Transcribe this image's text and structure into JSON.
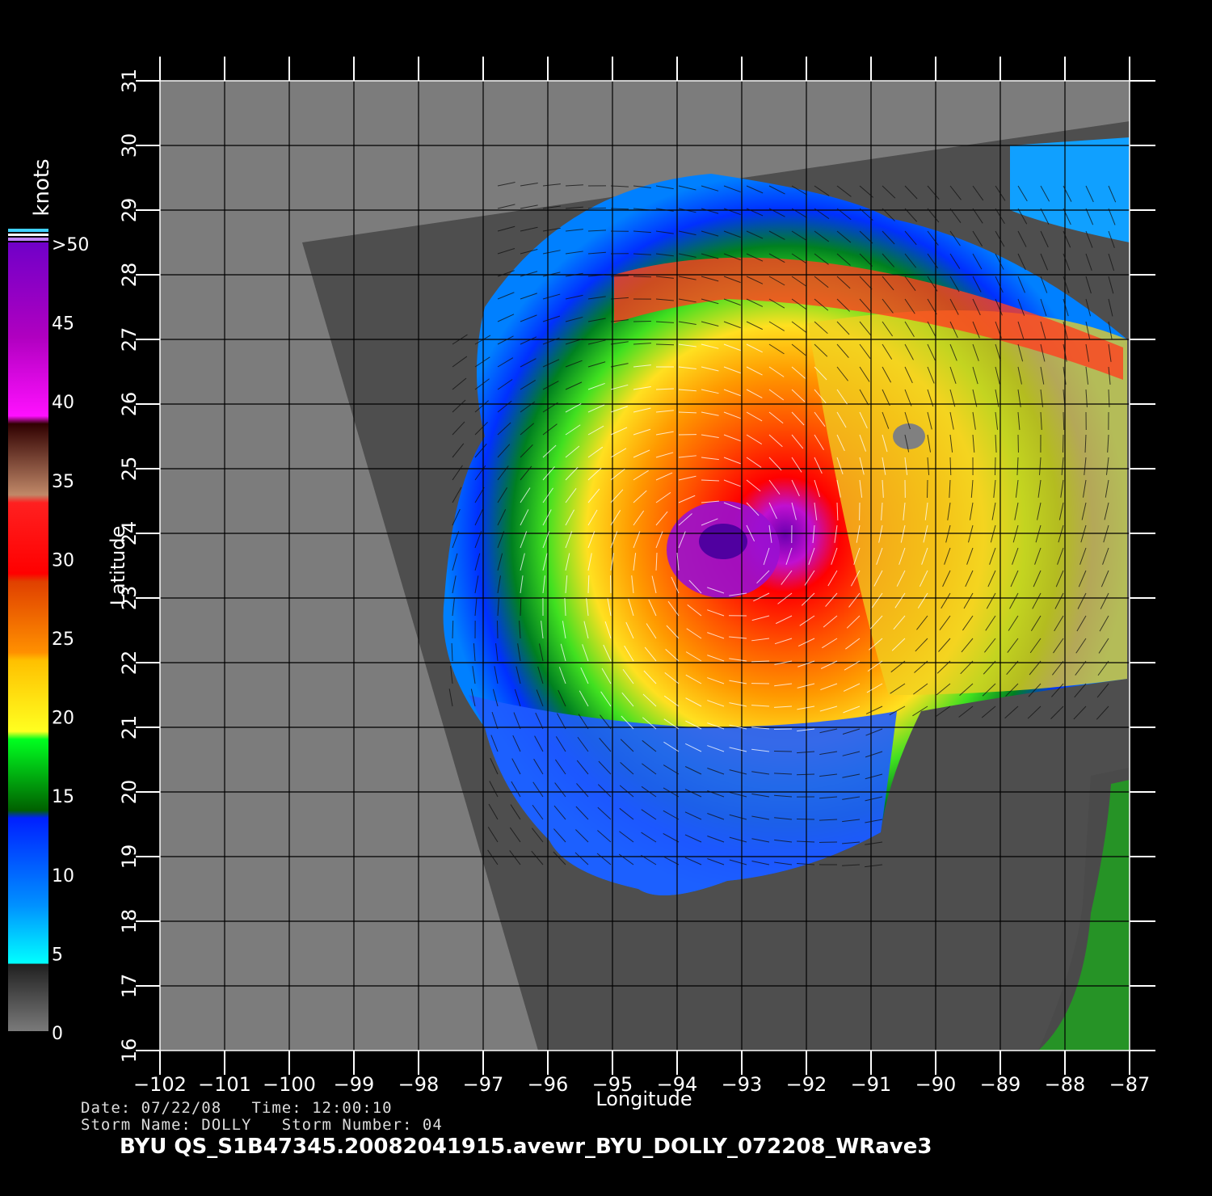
{
  "map": {
    "ylabel": "Latitude",
    "xlabel": "Longitude",
    "lat_ticks": [
      "31",
      "30",
      "29",
      "28",
      "27",
      "26",
      "25",
      "24",
      "23",
      "22",
      "21",
      "20",
      "19",
      "18",
      "17",
      "16"
    ],
    "lon_ticks": [
      "−102",
      "−101",
      "−100",
      "−99",
      "−98",
      "−97",
      "−96",
      "−95",
      "−94",
      "−93",
      "−92",
      "−91",
      "−90",
      "−89",
      "−88",
      "−87"
    ],
    "lat_range": [
      16,
      31
    ],
    "lon_range": [
      -102,
      -87
    ],
    "storm_center": {
      "lon": -93.2,
      "lat": 23.8
    },
    "grid": true
  },
  "colorbar": {
    "unit": "knots",
    "labels": [
      ">50",
      "45",
      "40",
      "35",
      "30",
      "25",
      "20",
      "15",
      "10",
      "5",
      "0"
    ],
    "stops": [
      "#808080",
      "#404040",
      "#00ffff",
      "#0080ff",
      "#0000ff",
      "#008000",
      "#00ff00",
      "#ffff00",
      "#ff8000",
      "#ff2000",
      "#c08060",
      "#400000",
      "#ff00ff",
      "#8000c0"
    ]
  },
  "meta": {
    "line1": "Date: 07/22/08   Time: 12:00:10",
    "line2": "Storm Name: DOLLY   Storm Number: 04"
  },
  "footer": "BYU  QS_S1B47345.20082041915.avewr_BYU_DOLLY_072208_WRave3"
}
